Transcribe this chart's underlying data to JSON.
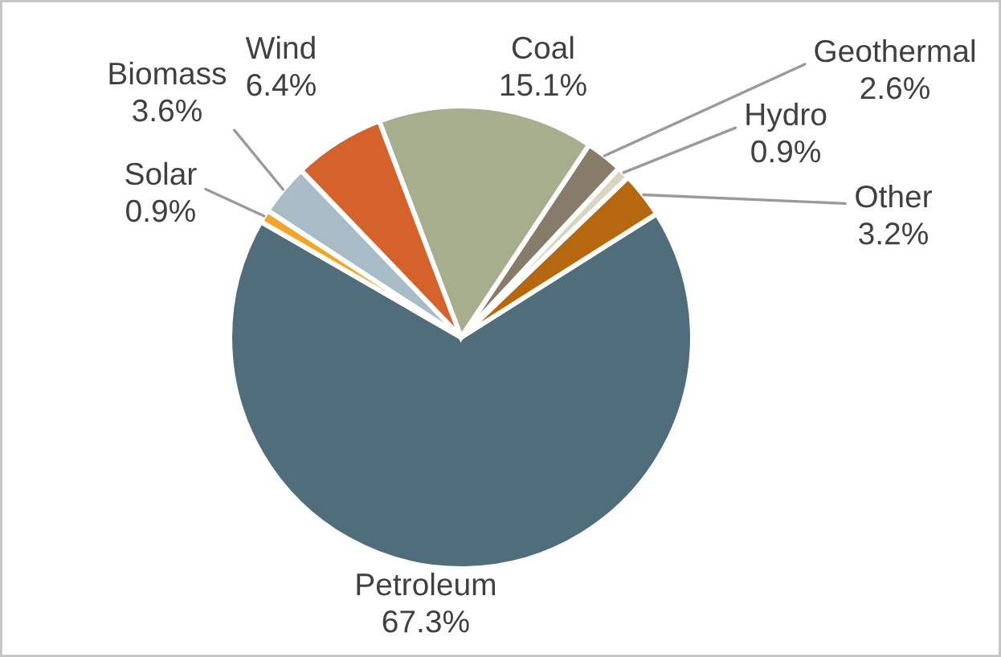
{
  "chart_data": {
    "type": "pie",
    "categories": [
      "Petroleum",
      "Other",
      "Hydro",
      "Geothermal",
      "Coal",
      "Wind",
      "Biomass",
      "Solar"
    ],
    "values": [
      67.3,
      3.2,
      0.9,
      2.6,
      15.1,
      6.4,
      3.6,
      0.9
    ],
    "colors": [
      "#4f6d7a",
      "#b5680f",
      "#d8d6c2",
      "#877c6a",
      "#a6ae8d",
      "#d4622a",
      "#a7bcc6",
      "#f1a52a"
    ],
    "value_labels": [
      "67.3%",
      "3.2%",
      "0.9%",
      "2.6%",
      "15.1%",
      "6.4%",
      "3.6%",
      "0.9%"
    ]
  }
}
